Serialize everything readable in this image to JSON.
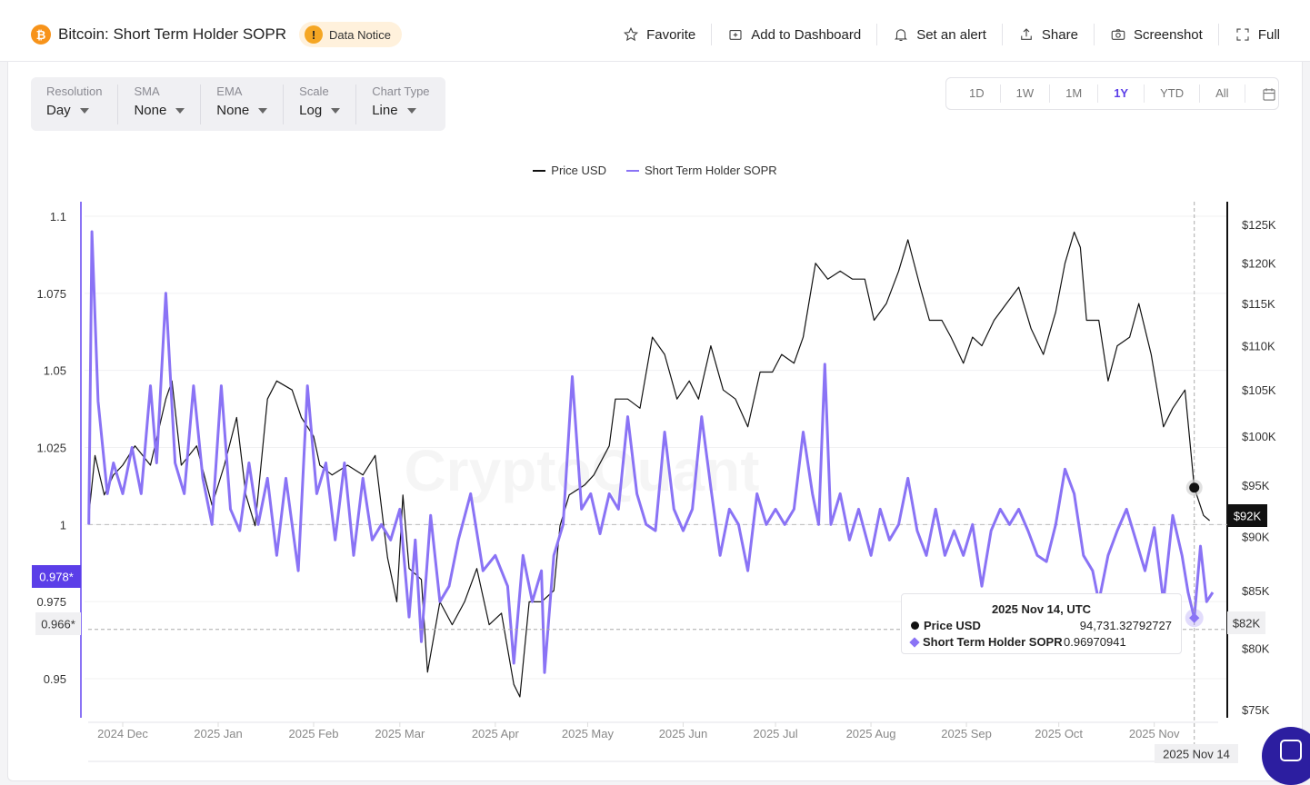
{
  "header": {
    "title": "Bitcoin: Short Term Holder SOPR",
    "notice": "Data Notice",
    "actions": [
      "Favorite",
      "Add to Dashboard",
      "Set an alert",
      "Share",
      "Screenshot",
      "Full"
    ]
  },
  "controls": [
    {
      "label": "Resolution",
      "value": "Day"
    },
    {
      "label": "SMA",
      "value": "None"
    },
    {
      "label": "EMA",
      "value": "None"
    },
    {
      "label": "Scale",
      "value": "Log"
    },
    {
      "label": "Chart Type",
      "value": "Line"
    }
  ],
  "ranges": {
    "items": [
      "1D",
      "1W",
      "1M",
      "1Y",
      "YTD",
      "All"
    ],
    "active": "1Y"
  },
  "watermark": "CryptoQuant",
  "tooltip": {
    "title": "2025 Nov 14, UTC",
    "price_label": "Price USD",
    "price_value": "94,731.32792727",
    "sopr_label": "Short Term Holder SOPR",
    "sopr_value": "0.96970941"
  },
  "crosshair": {
    "x_label": "2025 Nov 14",
    "left_label": "0.966*",
    "right_label": "$82K"
  },
  "badges": {
    "sopr_last": "0.978*",
    "price_last": "$92K"
  },
  "colors": {
    "price": "#111111",
    "sopr": "#8a73f5",
    "accent": "#5b3ee8"
  },
  "chart_data": {
    "type": "line",
    "legend_position": "top",
    "grid": true,
    "x_ticks": [
      "2024 Dec",
      "2025 Jan",
      "2025 Feb",
      "2025 Mar",
      "2025 Apr",
      "2025 May",
      "2025 Jun",
      "2025 Jul",
      "2025 Aug",
      "2025 Sep",
      "2025 Oct",
      "2025 Nov"
    ],
    "y_left": {
      "ticks": [
        "1.1",
        "1.075",
        "1.05",
        "1.025",
        "1",
        "0.975",
        "0.95"
      ],
      "range": [
        0.945,
        1.1
      ]
    },
    "y_right": {
      "scale": "log",
      "ticks": [
        "$125K",
        "$120K",
        "$115K",
        "$110K",
        "$105K",
        "$100K",
        "$95K",
        "$90K",
        "$85K",
        "$80K",
        "$75K"
      ],
      "range": [
        73000,
        127000
      ]
    },
    "series": [
      {
        "name": "Price USD",
        "axis": "right",
        "points": [
          [
            "2024-11-20",
            92000
          ],
          [
            "2024-11-22",
            98000
          ],
          [
            "2024-11-25",
            94000
          ],
          [
            "2024-11-28",
            96000
          ],
          [
            "2024-12-01",
            97000
          ],
          [
            "2024-12-05",
            99000
          ],
          [
            "2024-12-10",
            97000
          ],
          [
            "2024-12-15",
            104000
          ],
          [
            "2024-12-17",
            106000
          ],
          [
            "2024-12-20",
            97000
          ],
          [
            "2024-12-25",
            99000
          ],
          [
            "2024-12-30",
            93000
          ],
          [
            "2025-01-03",
            97000
          ],
          [
            "2025-01-07",
            102000
          ],
          [
            "2025-01-10",
            94000
          ],
          [
            "2025-01-13",
            91000
          ],
          [
            "2025-01-17",
            104000
          ],
          [
            "2025-01-20",
            106000
          ],
          [
            "2025-01-25",
            105000
          ],
          [
            "2025-01-28",
            102000
          ],
          [
            "2025-02-01",
            100000
          ],
          [
            "2025-02-03",
            97000
          ],
          [
            "2025-02-07",
            96000
          ],
          [
            "2025-02-12",
            97000
          ],
          [
            "2025-02-17",
            96000
          ],
          [
            "2025-02-21",
            98000
          ],
          [
            "2025-02-25",
            88000
          ],
          [
            "2025-02-28",
            84000
          ],
          [
            "2025-03-02",
            94000
          ],
          [
            "2025-03-04",
            87000
          ],
          [
            "2025-03-08",
            86000
          ],
          [
            "2025-03-10",
            78000
          ],
          [
            "2025-03-14",
            84000
          ],
          [
            "2025-03-18",
            82000
          ],
          [
            "2025-03-22",
            84000
          ],
          [
            "2025-03-26",
            87000
          ],
          [
            "2025-03-30",
            82000
          ],
          [
            "2025-04-03",
            83000
          ],
          [
            "2025-04-07",
            77000
          ],
          [
            "2025-04-09",
            76000
          ],
          [
            "2025-04-12",
            84000
          ],
          [
            "2025-04-16",
            84000
          ],
          [
            "2025-04-20",
            85000
          ],
          [
            "2025-04-22",
            91000
          ],
          [
            "2025-04-25",
            94000
          ],
          [
            "2025-04-30",
            95000
          ],
          [
            "2025-05-03",
            96000
          ],
          [
            "2025-05-08",
            99000
          ],
          [
            "2025-05-10",
            104000
          ],
          [
            "2025-05-14",
            104000
          ],
          [
            "2025-05-18",
            103000
          ],
          [
            "2025-05-22",
            111000
          ],
          [
            "2025-05-26",
            109000
          ],
          [
            "2025-05-30",
            104000
          ],
          [
            "2025-06-03",
            106000
          ],
          [
            "2025-06-06",
            104000
          ],
          [
            "2025-06-10",
            110000
          ],
          [
            "2025-06-14",
            105000
          ],
          [
            "2025-06-18",
            104000
          ],
          [
            "2025-06-22",
            101000
          ],
          [
            "2025-06-26",
            107000
          ],
          [
            "2025-06-30",
            107000
          ],
          [
            "2025-07-03",
            109000
          ],
          [
            "2025-07-07",
            108000
          ],
          [
            "2025-07-10",
            111000
          ],
          [
            "2025-07-14",
            120000
          ],
          [
            "2025-07-18",
            118000
          ],
          [
            "2025-07-22",
            119000
          ],
          [
            "2025-07-26",
            118000
          ],
          [
            "2025-07-30",
            118000
          ],
          [
            "2025-08-02",
            113000
          ],
          [
            "2025-08-06",
            115000
          ],
          [
            "2025-08-10",
            119000
          ],
          [
            "2025-08-13",
            123000
          ],
          [
            "2025-08-17",
            117000
          ],
          [
            "2025-08-20",
            113000
          ],
          [
            "2025-08-24",
            113000
          ],
          [
            "2025-08-27",
            111000
          ],
          [
            "2025-08-31",
            108000
          ],
          [
            "2025-09-03",
            111000
          ],
          [
            "2025-09-06",
            110000
          ],
          [
            "2025-09-10",
            113000
          ],
          [
            "2025-09-14",
            115000
          ],
          [
            "2025-09-18",
            117000
          ],
          [
            "2025-09-22",
            112000
          ],
          [
            "2025-09-26",
            109000
          ],
          [
            "2025-09-30",
            114000
          ],
          [
            "2025-10-03",
            120000
          ],
          [
            "2025-10-06",
            124000
          ],
          [
            "2025-10-08",
            122000
          ],
          [
            "2025-10-10",
            113000
          ],
          [
            "2025-10-14",
            113000
          ],
          [
            "2025-10-17",
            106000
          ],
          [
            "2025-10-20",
            110000
          ],
          [
            "2025-10-24",
            111000
          ],
          [
            "2025-10-27",
            115000
          ],
          [
            "2025-10-31",
            109000
          ],
          [
            "2025-11-04",
            101000
          ],
          [
            "2025-11-07",
            103000
          ],
          [
            "2025-11-11",
            105000
          ],
          [
            "2025-11-14",
            94731.33
          ],
          [
            "2025-11-17",
            92000
          ],
          [
            "2025-11-19",
            91500
          ]
        ]
      },
      {
        "name": "Short Term Holder SOPR",
        "axis": "left",
        "points": [
          [
            "2024-11-20",
            1.0
          ],
          [
            "2024-11-21",
            1.095
          ],
          [
            "2024-11-23",
            1.04
          ],
          [
            "2024-11-26",
            1.01
          ],
          [
            "2024-11-28",
            1.02
          ],
          [
            "2024-12-01",
            1.01
          ],
          [
            "2024-12-04",
            1.025
          ],
          [
            "2024-12-07",
            1.01
          ],
          [
            "2024-12-10",
            1.045
          ],
          [
            "2024-12-12",
            1.02
          ],
          [
            "2024-12-15",
            1.075
          ],
          [
            "2024-12-18",
            1.02
          ],
          [
            "2024-12-21",
            1.01
          ],
          [
            "2024-12-24",
            1.045
          ],
          [
            "2024-12-27",
            1.015
          ],
          [
            "2024-12-30",
            1.0
          ],
          [
            "2025-01-02",
            1.045
          ],
          [
            "2025-01-05",
            1.005
          ],
          [
            "2025-01-08",
            0.998
          ],
          [
            "2025-01-11",
            1.02
          ],
          [
            "2025-01-14",
            1.0
          ],
          [
            "2025-01-17",
            1.015
          ],
          [
            "2025-01-20",
            0.99
          ],
          [
            "2025-01-23",
            1.015
          ],
          [
            "2025-01-27",
            0.985
          ],
          [
            "2025-01-30",
            1.045
          ],
          [
            "2025-02-02",
            1.01
          ],
          [
            "2025-02-05",
            1.02
          ],
          [
            "2025-02-08",
            0.995
          ],
          [
            "2025-02-11",
            1.02
          ],
          [
            "2025-02-14",
            0.99
          ],
          [
            "2025-02-17",
            1.015
          ],
          [
            "2025-02-20",
            0.995
          ],
          [
            "2025-02-23",
            1.0
          ],
          [
            "2025-02-26",
            0.995
          ],
          [
            "2025-03-01",
            1.005
          ],
          [
            "2025-03-04",
            0.97
          ],
          [
            "2025-03-06",
            0.995
          ],
          [
            "2025-03-08",
            0.962
          ],
          [
            "2025-03-11",
            1.003
          ],
          [
            "2025-03-14",
            0.975
          ],
          [
            "2025-03-17",
            0.98
          ],
          [
            "2025-03-20",
            0.995
          ],
          [
            "2025-03-24",
            1.01
          ],
          [
            "2025-03-28",
            0.985
          ],
          [
            "2025-04-01",
            0.99
          ],
          [
            "2025-04-05",
            0.98
          ],
          [
            "2025-04-07",
            0.955
          ],
          [
            "2025-04-10",
            0.99
          ],
          [
            "2025-04-13",
            0.975
          ],
          [
            "2025-04-16",
            0.985
          ],
          [
            "2025-04-17",
            0.952
          ],
          [
            "2025-04-20",
            0.99
          ],
          [
            "2025-04-23",
            1.0
          ],
          [
            "2025-04-26",
            1.048
          ],
          [
            "2025-04-29",
            1.005
          ],
          [
            "2025-05-02",
            1.01
          ],
          [
            "2025-05-05",
            0.997
          ],
          [
            "2025-05-08",
            1.01
          ],
          [
            "2025-05-11",
            1.005
          ],
          [
            "2025-05-14",
            1.035
          ],
          [
            "2025-05-17",
            1.01
          ],
          [
            "2025-05-20",
            1.0
          ],
          [
            "2025-05-23",
            0.998
          ],
          [
            "2025-05-26",
            1.03
          ],
          [
            "2025-05-29",
            1.005
          ],
          [
            "2025-06-01",
            0.998
          ],
          [
            "2025-06-04",
            1.005
          ],
          [
            "2025-06-07",
            1.035
          ],
          [
            "2025-06-10",
            1.012
          ],
          [
            "2025-06-13",
            0.99
          ],
          [
            "2025-06-16",
            1.005
          ],
          [
            "2025-06-19",
            1.0
          ],
          [
            "2025-06-22",
            0.985
          ],
          [
            "2025-06-25",
            1.01
          ],
          [
            "2025-06-28",
            1.0
          ],
          [
            "2025-07-01",
            1.005
          ],
          [
            "2025-07-04",
            1.0
          ],
          [
            "2025-07-07",
            1.005
          ],
          [
            "2025-07-10",
            1.03
          ],
          [
            "2025-07-13",
            1.01
          ],
          [
            "2025-07-15",
            1.0
          ],
          [
            "2025-07-17",
            1.052
          ],
          [
            "2025-07-19",
            1.0
          ],
          [
            "2025-07-22",
            1.01
          ],
          [
            "2025-07-25",
            0.995
          ],
          [
            "2025-07-28",
            1.005
          ],
          [
            "2025-08-01",
            0.99
          ],
          [
            "2025-08-04",
            1.005
          ],
          [
            "2025-08-07",
            0.995
          ],
          [
            "2025-08-10",
            1.0
          ],
          [
            "2025-08-13",
            1.015
          ],
          [
            "2025-08-16",
            0.998
          ],
          [
            "2025-08-19",
            0.99
          ],
          [
            "2025-08-22",
            1.005
          ],
          [
            "2025-08-25",
            0.99
          ],
          [
            "2025-08-28",
            0.998
          ],
          [
            "2025-08-31",
            0.99
          ],
          [
            "2025-09-03",
            1.0
          ],
          [
            "2025-09-06",
            0.98
          ],
          [
            "2025-09-09",
            0.998
          ],
          [
            "2025-09-12",
            1.005
          ],
          [
            "2025-09-15",
            1.0
          ],
          [
            "2025-09-18",
            1.005
          ],
          [
            "2025-09-21",
            0.998
          ],
          [
            "2025-09-24",
            0.99
          ],
          [
            "2025-09-27",
            0.988
          ],
          [
            "2025-09-30",
            1.0
          ],
          [
            "2025-10-03",
            1.018
          ],
          [
            "2025-10-06",
            1.01
          ],
          [
            "2025-10-09",
            0.99
          ],
          [
            "2025-10-12",
            0.985
          ],
          [
            "2025-10-14",
            0.975
          ],
          [
            "2025-10-17",
            0.99
          ],
          [
            "2025-10-20",
            0.998
          ],
          [
            "2025-10-23",
            1.005
          ],
          [
            "2025-10-26",
            0.995
          ],
          [
            "2025-10-29",
            0.985
          ],
          [
            "2025-11-01",
            0.999
          ],
          [
            "2025-11-04",
            0.975
          ],
          [
            "2025-11-07",
            1.003
          ],
          [
            "2025-11-10",
            0.99
          ],
          [
            "2025-11-12",
            0.978
          ],
          [
            "2025-11-14",
            0.96970941
          ],
          [
            "2025-11-16",
            0.993
          ],
          [
            "2025-11-18",
            0.975
          ],
          [
            "2025-11-20",
            0.978
          ]
        ]
      }
    ]
  }
}
